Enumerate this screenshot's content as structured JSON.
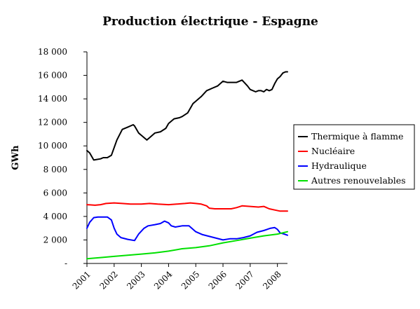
{
  "chart_data": {
    "type": "line",
    "title": "Production électrique - Espagne",
    "ylabel": "GWh",
    "xlabel": "",
    "ylim": [
      0,
      18000
    ],
    "y_ticks": [
      0,
      2000,
      4000,
      6000,
      8000,
      10000,
      12000,
      14000,
      16000,
      18000
    ],
    "y_tick_labels": [
      "-",
      "2 000",
      "4 000",
      "6 000",
      "8 000",
      "10 000",
      "12 000",
      "14 000",
      "16 000",
      "18 000"
    ],
    "xlim": [
      2001.0,
      2008.37
    ],
    "x_ticks": [
      2001,
      2002,
      2003,
      2004,
      2005,
      2006,
      2007,
      2008
    ],
    "x_tick_labels": [
      "2001",
      "2002",
      "2003",
      "2004",
      "2005",
      "2006",
      "2007",
      "2008"
    ],
    "legend_position": "right",
    "series": [
      {
        "name": "Thermique à flamme",
        "color": "#000000",
        "x": [
          2001.0,
          2001.1,
          2001.25,
          2001.5,
          2001.6,
          2001.75,
          2001.9,
          2002.1,
          2002.3,
          2002.5,
          2002.7,
          2002.75,
          2002.9,
          2003.0,
          2003.2,
          2003.3,
          2003.5,
          2003.7,
          2003.9,
          2004.0,
          2004.2,
          2004.4,
          2004.5,
          2004.7,
          2004.9,
          2005.0,
          2005.2,
          2005.4,
          2005.6,
          2005.8,
          2006.0,
          2006.15,
          2006.3,
          2006.5,
          2006.7,
          2006.9,
          2007.0,
          2007.2,
          2007.3,
          2007.4,
          2007.5,
          2007.6,
          2007.7,
          2007.8,
          2007.9,
          2008.0,
          2008.1,
          2008.2,
          2008.3,
          2008.37
        ],
        "y": [
          9600,
          9400,
          8800,
          8900,
          9000,
          9000,
          9200,
          10500,
          11400,
          11600,
          11800,
          11700,
          11100,
          10900,
          10500,
          10700,
          11100,
          11200,
          11500,
          11900,
          12300,
          12400,
          12500,
          12800,
          13600,
          13800,
          14200,
          14700,
          14900,
          15100,
          15500,
          15400,
          15400,
          15400,
          15600,
          15100,
          14800,
          14600,
          14700,
          14700,
          14600,
          14800,
          14700,
          14800,
          15300,
          15700,
          15900,
          16200,
          16300,
          16300
        ]
      },
      {
        "name": "Nucléaire",
        "color": "#ff0000",
        "x": [
          2001.0,
          2001.3,
          2001.5,
          2001.7,
          2002.0,
          2002.3,
          2002.6,
          2003.0,
          2003.3,
          2003.6,
          2004.0,
          2004.3,
          2004.6,
          2004.8,
          2005.0,
          2005.2,
          2005.4,
          2005.5,
          2005.7,
          2006.0,
          2006.3,
          2006.5,
          2006.7,
          2007.0,
          2007.3,
          2007.5,
          2007.7,
          2007.9,
          2008.1,
          2008.37
        ],
        "y": [
          5000,
          4950,
          5000,
          5100,
          5150,
          5100,
          5050,
          5050,
          5100,
          5050,
          5000,
          5050,
          5100,
          5150,
          5100,
          5050,
          4900,
          4700,
          4650,
          4650,
          4650,
          4750,
          4900,
          4850,
          4800,
          4850,
          4650,
          4550,
          4450,
          4450
        ]
      },
      {
        "name": "Hydraulique",
        "color": "#0000ff",
        "x": [
          2001.0,
          2001.1,
          2001.25,
          2001.4,
          2001.6,
          2001.75,
          2001.9,
          2002.0,
          2002.1,
          2002.25,
          2002.5,
          2002.75,
          2002.9,
          2003.1,
          2003.25,
          2003.5,
          2003.7,
          2003.85,
          2004.0,
          2004.1,
          2004.25,
          2004.5,
          2004.75,
          2005.0,
          2005.25,
          2005.5,
          2005.75,
          2006.0,
          2006.25,
          2006.5,
          2006.75,
          2007.0,
          2007.25,
          2007.5,
          2007.75,
          2007.9,
          2008.0,
          2008.1,
          2008.25,
          2008.37
        ],
        "y": [
          3000,
          3500,
          3900,
          3950,
          3950,
          3950,
          3700,
          3000,
          2500,
          2200,
          2050,
          1950,
          2500,
          3000,
          3200,
          3300,
          3400,
          3600,
          3450,
          3200,
          3100,
          3200,
          3200,
          2700,
          2450,
          2300,
          2150,
          2000,
          2100,
          2100,
          2200,
          2350,
          2650,
          2800,
          3000,
          3050,
          2900,
          2600,
          2500,
          2400
        ]
      },
      {
        "name": "Autres renouvelables",
        "color": "#00e000",
        "x": [
          2001.0,
          2001.5,
          2002.0,
          2002.5,
          2003.0,
          2003.5,
          2004.0,
          2004.5,
          2005.0,
          2005.5,
          2006.0,
          2006.5,
          2007.0,
          2007.5,
          2008.0,
          2008.37
        ],
        "y": [
          400,
          500,
          600,
          700,
          800,
          900,
          1050,
          1250,
          1350,
          1500,
          1750,
          1950,
          2150,
          2350,
          2500,
          2700
        ]
      }
    ]
  }
}
